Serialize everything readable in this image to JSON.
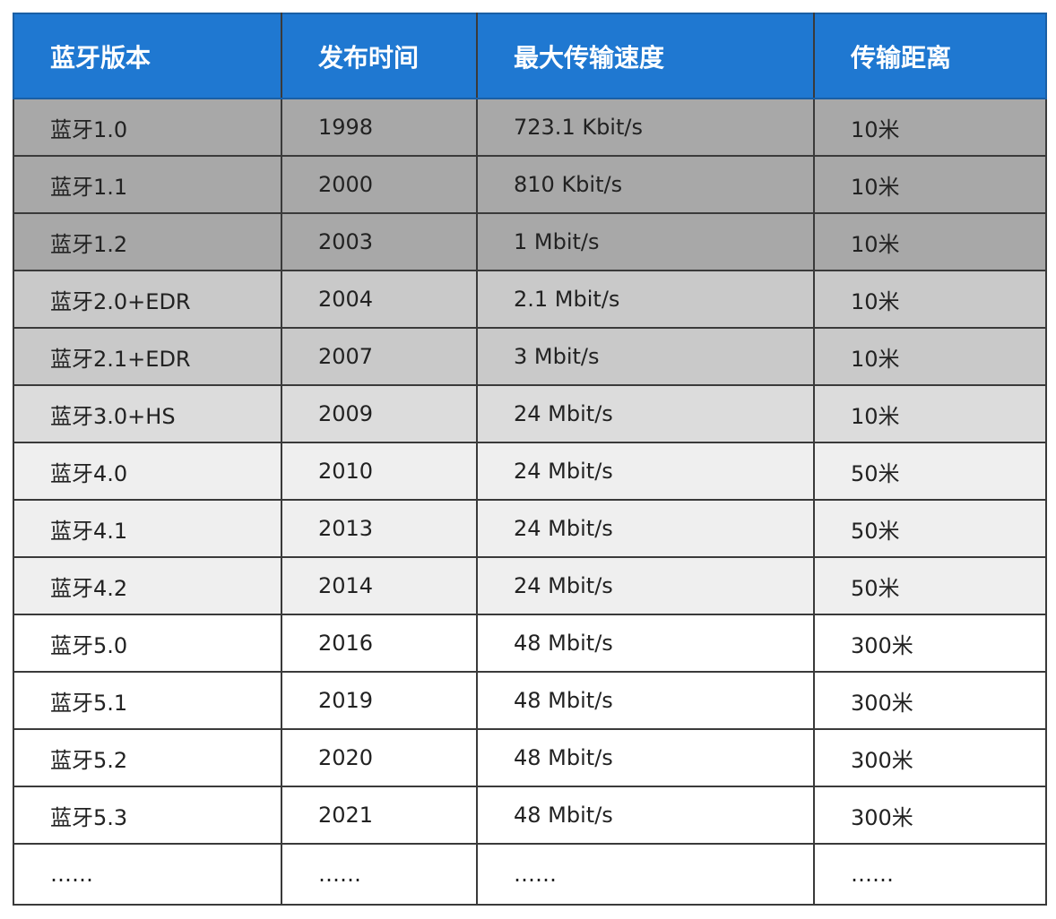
{
  "table": {
    "header": [
      "蓝牙版本",
      "发布时间",
      "最大传输速度",
      "传输距离"
    ],
    "rows": [
      [
        "蓝牙1.0",
        "1998",
        "723.1 Kbit/s",
        "10米"
      ],
      [
        "蓝牙1.1",
        "2000",
        "810 Kbit/s",
        "10米"
      ],
      [
        "蓝牙1.2",
        "2003",
        "1 Mbit/s",
        "10米"
      ],
      [
        "蓝牙2.0+EDR",
        "2004",
        "2.1 Mbit/s",
        "10米"
      ],
      [
        "蓝牙2.1+EDR",
        "2007",
        "3 Mbit/s",
        "10米"
      ],
      [
        "蓝牙3.0+HS",
        "2009",
        "24 Mbit/s",
        "10米"
      ],
      [
        "蓝牙4.0",
        "2010",
        "24 Mbit/s",
        "50米"
      ],
      [
        "蓝牙4.1",
        "2013",
        "24 Mbit/s",
        "50米"
      ],
      [
        "蓝牙4.2",
        "2014",
        "24 Mbit/s",
        "50米"
      ],
      [
        "蓝牙5.0",
        "2016",
        "48 Mbit/s",
        "300米"
      ],
      [
        "蓝牙5.1",
        "2019",
        "48 Mbit/s",
        "300米"
      ],
      [
        "蓝牙5.2",
        "2020",
        "48 Mbit/s",
        "300米"
      ],
      [
        "蓝牙5.3",
        "2021",
        "48 Mbit/s",
        "300米"
      ],
      [
        "……",
        "……",
        "……",
        "……"
      ]
    ]
  }
}
